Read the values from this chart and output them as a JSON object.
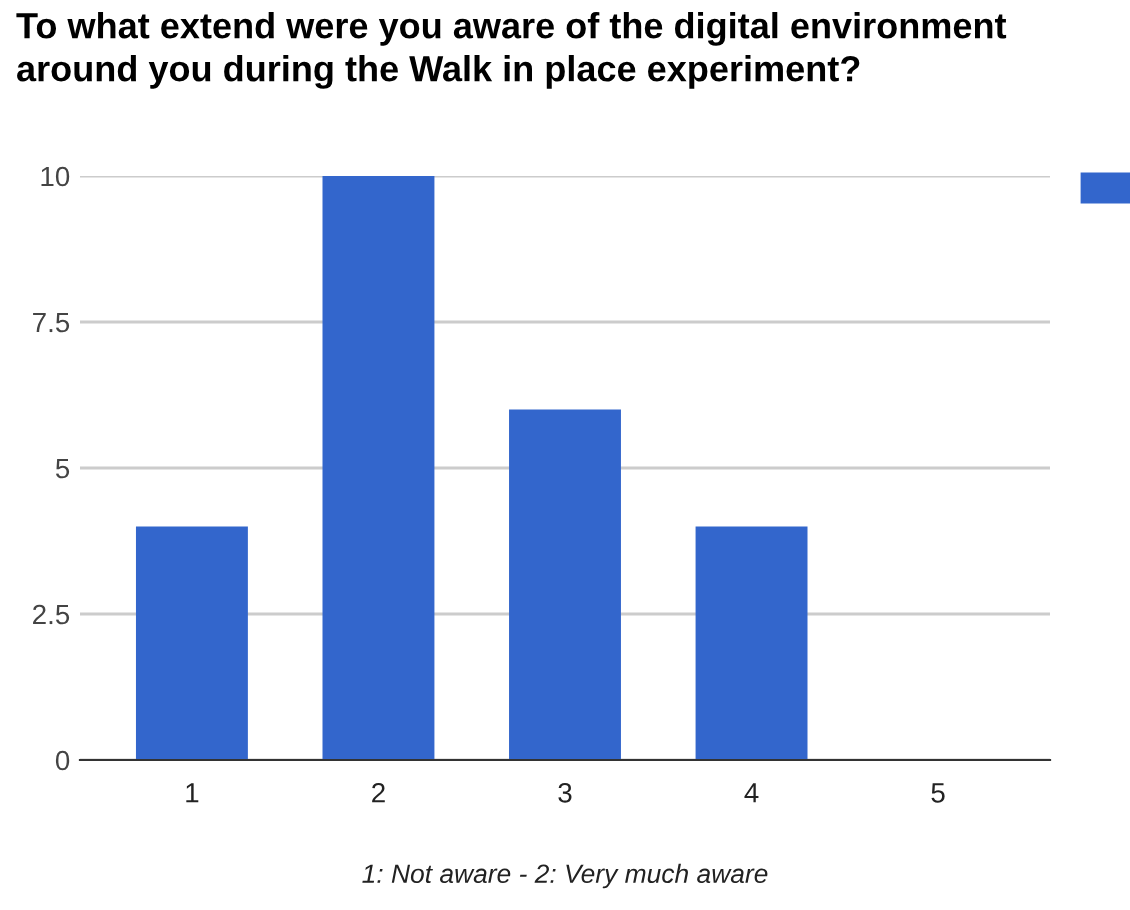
{
  "chart_data": {
    "type": "bar",
    "title": "To what extend were you aware of the digital environment around you during the Walk in place experiment?",
    "categories": [
      "1",
      "2",
      "3",
      "4",
      "5"
    ],
    "series": [
      {
        "color": "#3366cc",
        "values": [
          4,
          10,
          6,
          4,
          0
        ]
      }
    ],
    "ylim": [
      0,
      10
    ],
    "yticks": [
      0,
      2.5,
      5,
      7.5,
      10
    ],
    "grid": "y",
    "annotations": [
      "1: Not aware - 2: Very much aware"
    ]
  }
}
